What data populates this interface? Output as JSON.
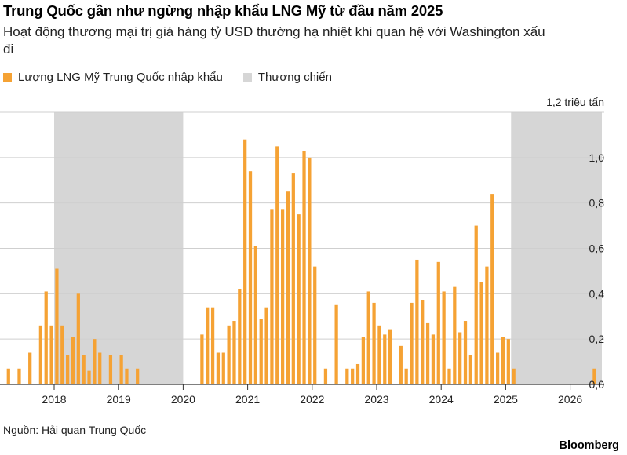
{
  "header": {
    "title": "Trung Quốc gần như ngừng nhập khẩu LNG Mỹ từ đầu năm 2025",
    "subtitle": "Hoạt động thương mại trị giá hàng tỷ USD thường hạ nhiệt khi quan hệ với Washington xấu đi"
  },
  "legend": {
    "lng_label": "Lượng LNG Mỹ Trung Quốc nhập khẩu",
    "war_label": "Thương chiến"
  },
  "colors": {
    "bar": "#f5a234",
    "war_band": "#d6d6d6",
    "grid": "#cfcfcf",
    "axis": "#333333"
  },
  "footer": {
    "source": "Nguồn: Hải quan Trung Quốc",
    "brand": "Bloomberg"
  },
  "chart_data": {
    "type": "bar",
    "unit_label": "1,2 triệu tấn",
    "ylim": [
      0,
      1.2
    ],
    "y_ticks": [
      "0,0",
      "0,2",
      "0,4",
      "0,6",
      "0,8",
      "1,0"
    ],
    "x_ticks": [
      "2018",
      "2019",
      "2020",
      "2021",
      "2022",
      "2023",
      "2024",
      "2025",
      "2026"
    ],
    "grid": true,
    "trade_war_periods": [
      {
        "start": "2018-01",
        "end": "2020-01"
      },
      {
        "start": "2025-02",
        "end": "2026-07"
      }
    ],
    "series": [
      {
        "name": "Lượng LNG Mỹ Trung Quốc nhập khẩu",
        "data": [
          [
            "2017-04",
            0.07
          ],
          [
            "2017-05",
            0.0
          ],
          [
            "2017-06",
            0.07
          ],
          [
            "2017-07",
            0.0
          ],
          [
            "2017-08",
            0.14
          ],
          [
            "2017-09",
            0.0
          ],
          [
            "2017-10",
            0.26
          ],
          [
            "2017-11",
            0.41
          ],
          [
            "2017-12",
            0.26
          ],
          [
            "2018-01",
            0.51
          ],
          [
            "2018-02",
            0.26
          ],
          [
            "2018-03",
            0.13
          ],
          [
            "2018-04",
            0.21
          ],
          [
            "2018-05",
            0.4
          ],
          [
            "2018-06",
            0.13
          ],
          [
            "2018-07",
            0.06
          ],
          [
            "2018-08",
            0.2
          ],
          [
            "2018-09",
            0.14
          ],
          [
            "2018-10",
            0.0
          ],
          [
            "2018-11",
            0.13
          ],
          [
            "2018-12",
            0.0
          ],
          [
            "2019-01",
            0.13
          ],
          [
            "2019-02",
            0.07
          ],
          [
            "2019-03",
            0.0
          ],
          [
            "2019-04",
            0.07
          ],
          [
            "2020-04",
            0.22
          ],
          [
            "2020-05",
            0.34
          ],
          [
            "2020-06",
            0.34
          ],
          [
            "2020-07",
            0.14
          ],
          [
            "2020-08",
            0.14
          ],
          [
            "2020-09",
            0.26
          ],
          [
            "2020-10",
            0.28
          ],
          [
            "2020-11",
            0.42
          ],
          [
            "2020-12",
            1.08
          ],
          [
            "2021-01",
            0.94
          ],
          [
            "2021-02",
            0.61
          ],
          [
            "2021-03",
            0.29
          ],
          [
            "2021-04",
            0.34
          ],
          [
            "2021-05",
            0.77
          ],
          [
            "2021-06",
            1.05
          ],
          [
            "2021-07",
            0.77
          ],
          [
            "2021-08",
            0.85
          ],
          [
            "2021-09",
            0.93
          ],
          [
            "2021-10",
            0.75
          ],
          [
            "2021-11",
            1.03
          ],
          [
            "2021-12",
            1.0
          ],
          [
            "2022-01",
            0.52
          ],
          [
            "2022-03",
            0.07
          ],
          [
            "2022-05",
            0.35
          ],
          [
            "2022-07",
            0.07
          ],
          [
            "2022-08",
            0.07
          ],
          [
            "2022-09",
            0.09
          ],
          [
            "2022-10",
            0.21
          ],
          [
            "2022-11",
            0.41
          ],
          [
            "2022-12",
            0.36
          ],
          [
            "2023-01",
            0.26
          ],
          [
            "2023-02",
            0.22
          ],
          [
            "2023-03",
            0.24
          ],
          [
            "2023-05",
            0.17
          ],
          [
            "2023-06",
            0.07
          ],
          [
            "2023-07",
            0.36
          ],
          [
            "2023-08",
            0.55
          ],
          [
            "2023-09",
            0.37
          ],
          [
            "2023-10",
            0.27
          ],
          [
            "2023-11",
            0.22
          ],
          [
            "2023-12",
            0.54
          ],
          [
            "2024-01",
            0.41
          ],
          [
            "2024-02",
            0.07
          ],
          [
            "2024-03",
            0.43
          ],
          [
            "2024-04",
            0.23
          ],
          [
            "2024-05",
            0.28
          ],
          [
            "2024-06",
            0.13
          ],
          [
            "2024-07",
            0.7
          ],
          [
            "2024-08",
            0.45
          ],
          [
            "2024-09",
            0.52
          ],
          [
            "2024-10",
            0.84
          ],
          [
            "2024-11",
            0.14
          ],
          [
            "2024-12",
            0.21
          ],
          [
            "2025-01",
            0.2
          ],
          [
            "2025-02",
            0.07
          ],
          [
            "2026-05",
            0.07
          ]
        ]
      }
    ]
  }
}
